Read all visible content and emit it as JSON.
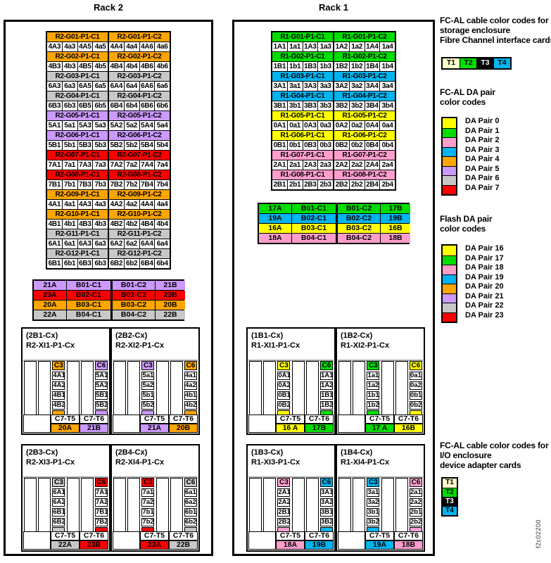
{
  "figure_id": "f2c02200",
  "colors": {
    "yellow": "#ffff00",
    "green": "#00dd00",
    "pink": "#ff9ecd",
    "cyan": "#00b4f0",
    "orange": "#ffa500",
    "purple": "#cc99ff",
    "gray": "#c8c8c8",
    "red": "#ff0000",
    "beige": "#ffffcc",
    "black": "#000000"
  },
  "racks": [
    {
      "title": "Rack 2",
      "g_rows": [
        {
          "color": "orange",
          "c1": {
            "label": "R2-G01-P1-C1",
            "cells": [
              "4A3",
              "4a3",
              "4A5",
              "4a5"
            ]
          },
          "c2": {
            "label": "R2-G01-P1-C2",
            "cells": [
              "4A4",
              "4a4",
              "4A6",
              "4a6"
            ]
          }
        },
        {
          "color": "orange",
          "c1": {
            "label": "R2-G02-P1-C1",
            "cells": [
              "4B3",
              "4b3",
              "4B5",
              "4b5"
            ]
          },
          "c2": {
            "label": "R2-G02-P1-C2",
            "cells": [
              "4B4",
              "4b4",
              "4B6",
              "4b6"
            ]
          }
        },
        {
          "color": "gray",
          "c1": {
            "label": "R2-G03-P1-C1",
            "cells": [
              "6A3",
              "6a3",
              "6A5",
              "6a5"
            ]
          },
          "c2": {
            "label": "R2-G03-P1-C2",
            "cells": [
              "6A4",
              "6a4",
              "6A6",
              "6a6"
            ]
          }
        },
        {
          "color": "gray",
          "c1": {
            "label": "R2-G04-P1-C1",
            "cells": [
              "6B3",
              "6b3",
              "6B5",
              "6b5"
            ]
          },
          "c2": {
            "label": "R2-G04-P1-C2",
            "cells": [
              "6B4",
              "6b4",
              "6B6",
              "6b6"
            ]
          }
        },
        {
          "color": "purple",
          "c1": {
            "label": "R2-G05-P1-C1",
            "cells": [
              "5A1",
              "5a1",
              "5A3",
              "5a3"
            ]
          },
          "c2": {
            "label": "R2-G05-P1-C2",
            "cells": [
              "5A2",
              "5a2",
              "5A4",
              "5a4"
            ]
          }
        },
        {
          "color": "purple",
          "c1": {
            "label": "R2-G06-P1-C1",
            "cells": [
              "5B1",
              "5b1",
              "5B3",
              "5b3"
            ]
          },
          "c2": {
            "label": "R2-G06-P1-C2",
            "cells": [
              "5B2",
              "5b2",
              "5B4",
              "5b4"
            ]
          }
        },
        {
          "color": "red",
          "c1": {
            "label": "R2-G07-P1-C1",
            "cells": [
              "7A1",
              "7a1",
              "7A3",
              "7a3"
            ]
          },
          "c2": {
            "label": "R2-G07-P1-C2",
            "cells": [
              "7A2",
              "7a2",
              "7A4",
              "7a4"
            ]
          }
        },
        {
          "color": "red",
          "c1": {
            "label": "R2-G08-P1-C1",
            "cells": [
              "7B1",
              "7b1",
              "7B3",
              "7b3"
            ]
          },
          "c2": {
            "label": "R2-G08-P1-C2",
            "cells": [
              "7B2",
              "7b2",
              "7B4",
              "7b4"
            ]
          }
        },
        {
          "color": "orange",
          "c1": {
            "label": "R2-G09-P1-C1",
            "cells": [
              "4A1",
              "4a1",
              "4A3",
              "4a3"
            ]
          },
          "c2": {
            "label": "R2-G09-P1-C2",
            "cells": [
              "4A2",
              "4a2",
              "4A4",
              "4a4"
            ]
          }
        },
        {
          "color": "orange",
          "c1": {
            "label": "R2-G10-P1-C1",
            "cells": [
              "4B1",
              "4b1",
              "4B3",
              "4b3"
            ]
          },
          "c2": {
            "label": "R2-G10-P1-C2",
            "cells": [
              "4B2",
              "4b2",
              "4B4",
              "4b4"
            ]
          }
        },
        {
          "color": "gray",
          "c1": {
            "label": "R2-G11-P1-C1",
            "cells": [
              "6A1",
              "6a1",
              "6A3",
              "6a3"
            ]
          },
          "c2": {
            "label": "R2-G11-P1-C2",
            "cells": [
              "6A2",
              "6a2",
              "6A4",
              "6a4"
            ]
          }
        },
        {
          "color": "gray",
          "c1": {
            "label": "R2-G12-P1-C1",
            "cells": [
              "6B1",
              "6b1",
              "6B3",
              "6b3"
            ]
          },
          "c2": {
            "label": "R2-G12-P1-C2",
            "cells": [
              "6B2",
              "6b2",
              "6B4",
              "6b4"
            ]
          }
        }
      ],
      "b_rows": [
        {
          "color": "purple",
          "a": "21A",
          "c1": "B01-C1",
          "c2": "B01-C2",
          "b": "21B"
        },
        {
          "color": "red",
          "a": "23A",
          "c1": "B02-C1",
          "c2": "B02-C2",
          "b": "23B"
        },
        {
          "color": "orange",
          "a": "20A",
          "c1": "B03-C1",
          "c2": "B03-C2",
          "b": "20B"
        },
        {
          "color": "gray",
          "a": "22A",
          "c1": "B04-C1",
          "c2": "B04-C2",
          "b": "22B"
        }
      ],
      "io_enclosures": [
        {
          "id": "(2B1-Cx)",
          "name": "R2-XI1-P1-Cx",
          "c3_label": "C3",
          "c6_label": "C6",
          "t5_label": "C7-T5",
          "t6_label": "C7-T6",
          "c3": {
            "color": "orange",
            "cells": [
              "4A1",
              "4A2",
              "4B1",
              "4B2"
            ]
          },
          "c6": {
            "color": "purple",
            "cells": [
              "5A1",
              "5A2",
              "5B1",
              "5B2"
            ]
          },
          "t5": {
            "color": "orange",
            "value": "20A"
          },
          "t6": {
            "color": "purple",
            "value": "21B"
          }
        },
        {
          "id": "(2B2-Cx)",
          "name": "R2-XI2-P1-Cx",
          "c3_label": "C3",
          "c6_label": "C6",
          "t5_label": "C7-T5",
          "t6_label": "C7-T6",
          "c3": {
            "color": "purple",
            "cells": [
              "5a1",
              "5a2",
              "5b1",
              "5b2"
            ]
          },
          "c6": {
            "color": "orange",
            "cells": [
              "4a1",
              "4a2",
              "4b1",
              "4b2"
            ]
          },
          "t5": {
            "color": "purple",
            "value": "21A"
          },
          "t6": {
            "color": "orange",
            "value": "20B"
          }
        },
        {
          "id": "(2B3-Cx)",
          "name": "R2-XI3-P1-Cx",
          "c3_label": "C3",
          "c6_label": "C6",
          "t5_label": "C7-T5",
          "t6_label": "C7-T6",
          "c3": {
            "color": "gray",
            "cells": [
              "6A1",
              "6A2",
              "6B1",
              "6B2"
            ]
          },
          "c6": {
            "color": "red",
            "cells": [
              "7A1",
              "7A2",
              "7B1",
              "7B2"
            ]
          },
          "t5": {
            "color": "gray",
            "value": "22A"
          },
          "t6": {
            "color": "red",
            "value": "23B"
          }
        },
        {
          "id": "(2B4-Cx)",
          "name": "R2-XI4-P1-Cx",
          "c3_label": "C3",
          "c6_label": "C6",
          "t5_label": "C7-T5",
          "t6_label": "C7-T6",
          "c3": {
            "color": "red",
            "cells": [
              "7a1",
              "7a2",
              "7b1",
              "7b2"
            ]
          },
          "c6": {
            "color": "gray",
            "cells": [
              "6a1",
              "6a2",
              "6b1",
              "6b2"
            ]
          },
          "t5": {
            "color": "red",
            "value": "23A"
          },
          "t6": {
            "color": "gray",
            "value": "22B"
          }
        }
      ]
    },
    {
      "title": "Rack 1",
      "g_rows": [
        {
          "color": "green",
          "c1": {
            "label": "R1-G01-P1-C1",
            "cells": [
              "1A1",
              "1a1",
              "1A3",
              "1a3"
            ]
          },
          "c2": {
            "label": "R1-G01-P1-C2",
            "cells": [
              "1A2",
              "1a2",
              "1A4",
              "1a4"
            ]
          }
        },
        {
          "color": "green",
          "c1": {
            "label": "R1-G02-P1-C1",
            "cells": [
              "1B1",
              "1b1",
              "1B3",
              "1b3"
            ]
          },
          "c2": {
            "label": "R1-G02-P1-C2",
            "cells": [
              "1B2",
              "1b2",
              "1B4",
              "1b4"
            ]
          }
        },
        {
          "color": "cyan",
          "c1": {
            "label": "R1-G03-P1-C1",
            "cells": [
              "3A1",
              "3a1",
              "3A3",
              "3a3"
            ]
          },
          "c2": {
            "label": "R1-G03-P1-C2",
            "cells": [
              "3A2",
              "3a2",
              "3A4",
              "3a4"
            ]
          }
        },
        {
          "color": "cyan",
          "c1": {
            "label": "R1-G04-P1-C1",
            "cells": [
              "3B1",
              "3b1",
              "3B3",
              "3b3"
            ]
          },
          "c2": {
            "label": "R1-G04-P1-C2",
            "cells": [
              "3B2",
              "3b2",
              "3B4",
              "3b4"
            ]
          }
        },
        {
          "color": "yellow",
          "c1": {
            "label": "R1-G05-P1-C1",
            "cells": [
              "0A1",
              "0a1",
              "0A3",
              "0a3"
            ]
          },
          "c2": {
            "label": "R1-G05-P1-C2",
            "cells": [
              "0A2",
              "0a2",
              "0A4",
              "0a4"
            ]
          }
        },
        {
          "color": "yellow",
          "c1": {
            "label": "R1-G06-P1-C1",
            "cells": [
              "0B1",
              "0b1",
              "0B3",
              "0b3"
            ]
          },
          "c2": {
            "label": "R1-G06-P1-C2",
            "cells": [
              "0B2",
              "0b2",
              "0B4",
              "0b4"
            ]
          }
        },
        {
          "color": "pink",
          "c1": {
            "label": "R1-G07-P1-C1",
            "cells": [
              "2A1",
              "2a1",
              "2A3",
              "2a3"
            ]
          },
          "c2": {
            "label": "R1-G07-P1-C2",
            "cells": [
              "2A2",
              "2a2",
              "2A4",
              "2a4"
            ]
          }
        },
        {
          "color": "pink",
          "c1": {
            "label": "R1-G08-P1-C1",
            "cells": [
              "2B1",
              "2b1",
              "2B3",
              "2b3"
            ]
          },
          "c2": {
            "label": "R1-G08-P1-C2",
            "cells": [
              "2B2",
              "2b2",
              "2B4",
              "2b4"
            ]
          }
        }
      ],
      "b_rows": [
        {
          "color": "green",
          "a": "17A",
          "c1": "B01-C1",
          "c2": "B01-C2",
          "b": "17B"
        },
        {
          "color": "cyan",
          "a": "19A",
          "c1": "B02-C1",
          "c2": "B02-C2",
          "b": "19B"
        },
        {
          "color": "yellow",
          "a": "16A",
          "c1": "B03-C1",
          "c2": "B03-C2",
          "b": "16B"
        },
        {
          "color": "pink",
          "a": "18A",
          "c1": "B04-C1",
          "c2": "B04-C2",
          "b": "18B"
        }
      ],
      "io_enclosures": [
        {
          "id": "(1B1-Cx)",
          "name": "R1-XI1-P1-Cx",
          "c3_label": "C3",
          "c6_label": "C6",
          "t5_label": "C7-T5",
          "t6_label": "C7-T6",
          "c3": {
            "color": "yellow",
            "cells": [
              "0A1",
              "0A2",
              "0B1",
              "0B2"
            ]
          },
          "c6": {
            "color": "green",
            "cells": [
              "1A1",
              "1A2",
              "1B1",
              "1B2"
            ]
          },
          "t5": {
            "color": "yellow",
            "value": "16 A"
          },
          "t6": {
            "color": "green",
            "value": "17B"
          }
        },
        {
          "id": "(1B2-Cx)",
          "name": "R1-XI2-P1-Cx",
          "c3_label": "C3",
          "c6_label": "C6",
          "t5_label": "C7-T5",
          "t6_label": "C7-T6",
          "c3": {
            "color": "green",
            "cells": [
              "1a1",
              "1a2",
              "1b1",
              "1b2"
            ]
          },
          "c6": {
            "color": "yellow",
            "cells": [
              "0a1",
              "0a2",
              "0b1",
              "0b2"
            ]
          },
          "t5": {
            "color": "green",
            "value": "17 A"
          },
          "t6": {
            "color": "yellow",
            "value": "16B"
          }
        },
        {
          "id": "(1B3-Cx)",
          "name": "R1-XI3-P1-Cx",
          "c3_label": "C3",
          "c6_label": "C6",
          "t5_label": "C7-T5",
          "t6_label": "C7-T6",
          "c3": {
            "color": "pink",
            "cells": [
              "2A1",
              "2A2",
              "2B1",
              "2B2"
            ]
          },
          "c6": {
            "color": "cyan",
            "cells": [
              "3A1",
              "3A2",
              "3B1",
              "3B2"
            ]
          },
          "t5": {
            "color": "pink",
            "value": "18A"
          },
          "t6": {
            "color": "cyan",
            "value": "19B"
          }
        },
        {
          "id": "(1B4-Cx)",
          "name": "R1-XI4-P1-Cx",
          "c3_label": "C3",
          "c6_label": "C6",
          "t5_label": "C7-T5",
          "t6_label": "C7-T6",
          "c3": {
            "color": "cyan",
            "cells": [
              "3a1",
              "3a2",
              "3b1",
              "3b2"
            ]
          },
          "c6": {
            "color": "pink",
            "cells": [
              "2a1",
              "2a2",
              "2b1",
              "2b2"
            ]
          },
          "t5": {
            "color": "cyan",
            "value": "19A"
          },
          "t6": {
            "color": "pink",
            "value": "18B"
          }
        }
      ]
    }
  ],
  "legend": {
    "storage": {
      "heading": [
        "FC-AL cable color codes for",
        "storage enclosure",
        "Fibre Channel interface cards"
      ],
      "tcards": [
        {
          "label": "T1",
          "color": "beige",
          "text": "#000000"
        },
        {
          "label": "T2",
          "color": "green",
          "text": "#000000"
        },
        {
          "label": "T3",
          "color": "black",
          "text": "#ffffff"
        },
        {
          "label": "T4",
          "color": "cyan",
          "text": "#000000"
        }
      ]
    },
    "da_pairs": {
      "heading": [
        "FC-AL DA pair",
        "color codes"
      ],
      "items": [
        {
          "label": "DA Pair 0",
          "color": "yellow"
        },
        {
          "label": "DA Pair 1",
          "color": "green"
        },
        {
          "label": "DA Pair 2",
          "color": "pink"
        },
        {
          "label": "DA Pair 3",
          "color": "cyan"
        },
        {
          "label": "DA Pair 4",
          "color": "orange"
        },
        {
          "label": "DA Pair 5",
          "color": "purple"
        },
        {
          "label": "DA Pair 6",
          "color": "gray"
        },
        {
          "label": "DA Pair 7",
          "color": "red"
        }
      ]
    },
    "flash_da_pairs": {
      "heading": [
        "Flash DA pair",
        "color codes"
      ],
      "items": [
        {
          "label": "DA Pair 16",
          "color": "yellow"
        },
        {
          "label": "DA Pair 17",
          "color": "green"
        },
        {
          "label": "DA Pair 18",
          "color": "pink"
        },
        {
          "label": "DA Pair 19",
          "color": "cyan"
        },
        {
          "label": "DA Pair 20",
          "color": "orange"
        },
        {
          "label": "DA Pair 21",
          "color": "purple"
        },
        {
          "label": "DA Pair 22",
          "color": "gray"
        },
        {
          "label": "DA Pair 23",
          "color": "red"
        }
      ]
    },
    "io": {
      "heading": [
        "FC-AL cable color codes for",
        "I/O enclosure",
        "device adapter cards"
      ],
      "tcards": [
        {
          "label": "T1",
          "color": "beige",
          "text": "#000000"
        },
        {
          "label": "T2",
          "color": "green",
          "text": "#000000"
        },
        {
          "label": "T3",
          "color": "black",
          "text": "#ffffff"
        },
        {
          "label": "T4",
          "color": "cyan",
          "text": "#000000"
        }
      ]
    }
  }
}
